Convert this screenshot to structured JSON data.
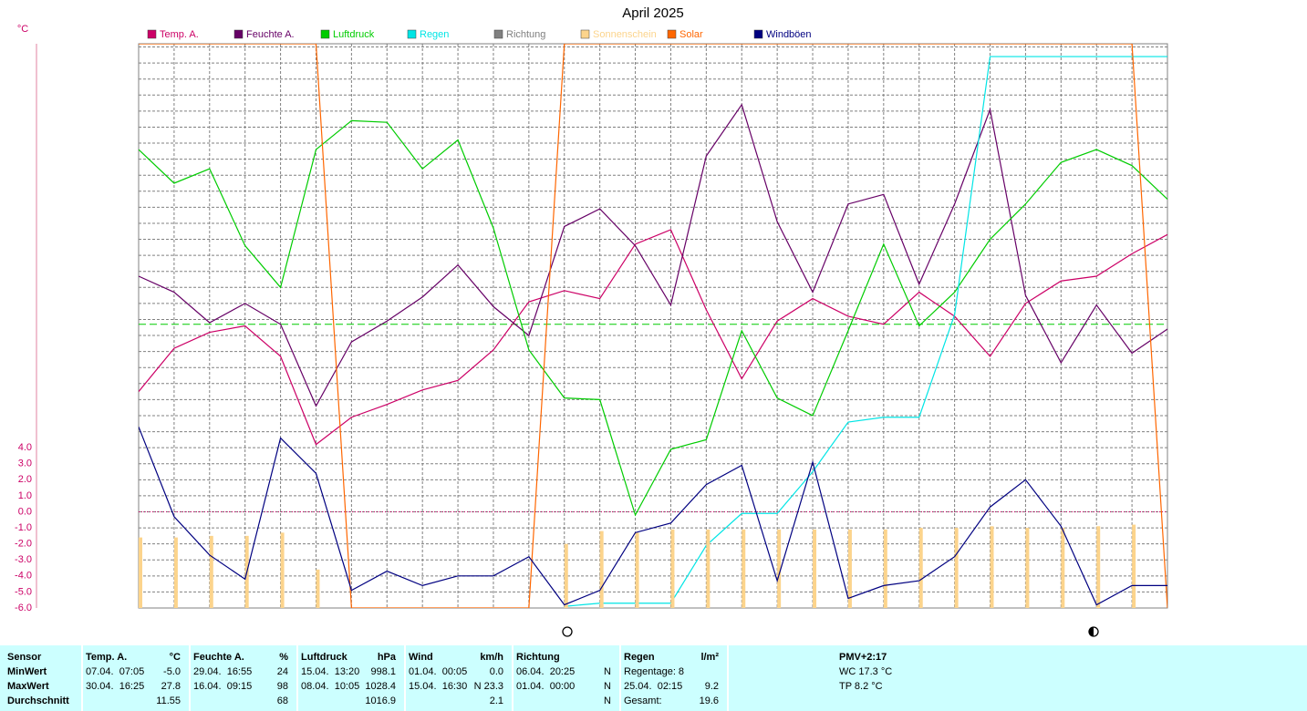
{
  "chart_data": {
    "type": "line",
    "title": "April 2025",
    "unit_label": "°C",
    "categories": [
      null,
      null,
      null,
      null,
      null,
      null,
      null,
      null,
      null,
      null,
      null,
      null,
      null,
      null,
      null,
      null,
      null,
      null,
      null,
      null,
      null,
      null,
      null,
      null,
      null,
      null,
      null,
      null,
      null,
      null
    ],
    "ylim": [
      -6,
      29.2
    ],
    "yticks": [
      {
        "value": 4,
        "label": "4.0"
      },
      {
        "value": 3,
        "label": "3.0"
      },
      {
        "value": 2,
        "label": "2.0"
      },
      {
        "value": 1,
        "label": "1.0"
      },
      {
        "value": 0,
        "label": "0.0"
      },
      {
        "value": -1,
        "label": "-1.0"
      },
      {
        "value": -2,
        "label": "-2.0"
      },
      {
        "value": -3,
        "label": "-3.0"
      },
      {
        "value": -4,
        "label": "-4.0"
      },
      {
        "value": -5,
        "label": "-5.0"
      },
      {
        "value": -6,
        "label": "-6.0"
      }
    ],
    "ygrid": [
      5,
      6,
      7,
      8,
      9,
      10,
      11,
      12,
      13,
      14,
      15,
      16,
      17,
      18,
      19,
      20,
      21,
      22,
      23,
      24,
      25,
      26,
      27,
      28,
      29
    ],
    "grid": true,
    "reference_lines": [
      {
        "value": 11.7,
        "color": "#00cc00",
        "style": "dashed"
      },
      {
        "value": 0,
        "color": "#cc0066",
        "style": "dotted"
      }
    ],
    "series": [
      {
        "name": "Temp. A.",
        "color": "#cc0066",
        "values": [
          7.5,
          10.2,
          11.2,
          11.6,
          9.7,
          4.2,
          5.9,
          6.7,
          7.6,
          8.2,
          10.1,
          13.1,
          13.8,
          13.3,
          16.7,
          17.6,
          12.6,
          8.3,
          11.9,
          13.3,
          12.2,
          11.7,
          13.7,
          12.2,
          9.7,
          13.0,
          14.4,
          14.7,
          16.1,
          17.3
        ]
      },
      {
        "name": "Feuchte A.",
        "color": "#660066",
        "values": [
          14.7,
          13.7,
          11.8,
          13.0,
          11.7,
          6.6,
          10.6,
          11.9,
          13.4,
          15.4,
          12.8,
          11.0,
          17.8,
          18.9,
          16.6,
          12.9,
          22.2,
          25.4,
          18.1,
          13.7,
          19.2,
          19.8,
          14.2,
          19.2,
          25.1,
          13.5,
          9.3,
          12.9,
          9.9,
          11.4
        ]
      },
      {
        "name": "Luftdruck",
        "color": "#00cc00",
        "values": [
          22.6,
          20.5,
          21.4,
          16.6,
          14.0,
          22.6,
          24.4,
          24.3,
          21.4,
          23.2,
          17.7,
          10.1,
          7.1,
          7.0,
          -0.2,
          3.9,
          4.5,
          11.3,
          7.1,
          6.0,
          11.3,
          16.7,
          11.6,
          13.7,
          17.0,
          19.2,
          21.8,
          22.6,
          21.6,
          19.5
        ]
      },
      {
        "name": "Regen",
        "color": "#00e5e5",
        "values": [
          null,
          null,
          null,
          null,
          null,
          null,
          null,
          null,
          null,
          null,
          null,
          null,
          -5.9,
          -5.7,
          -5.7,
          -5.7,
          -2.1,
          -0.1,
          -0.1,
          2.5,
          5.6,
          5.9,
          5.9,
          12.3,
          28.4,
          28.4,
          28.4,
          28.4,
          28.4,
          28.4
        ]
      },
      {
        "name": "Richtung",
        "color": "#808080"
      },
      {
        "name": "Sonnenschein",
        "color": "#fcd48c",
        "type": "bar",
        "values": [
          -1.6,
          -1.6,
          -1.5,
          -1.5,
          -1.3,
          -3.6,
          null,
          null,
          null,
          null,
          null,
          null,
          -2.0,
          -1.2,
          -1.3,
          -1.1,
          -1.1,
          -1.1,
          -1.1,
          -1.1,
          -1.1,
          -1.1,
          -1.0,
          -1.0,
          -0.9,
          -1.0,
          -1.0,
          -0.9,
          -0.8,
          null
        ]
      },
      {
        "name": "Solar",
        "color": "#ff6600",
        "values": [
          29.2,
          29.2,
          29.2,
          29.2,
          29.2,
          29.2,
          -6,
          -6,
          -6,
          -6,
          -6,
          -6,
          29.2,
          29.2,
          29.2,
          29.2,
          29.2,
          29.2,
          29.2,
          29.2,
          29.2,
          29.2,
          29.2,
          29.2,
          29.2,
          29.2,
          29.2,
          29.2,
          29.2,
          -6
        ]
      },
      {
        "name": "Windböen",
        "color": "#000080",
        "values": [
          5.3,
          -0.3,
          -2.7,
          -4.2,
          4.6,
          2.4,
          -4.9,
          -3.7,
          -4.6,
          -4.0,
          -4.0,
          -2.8,
          -5.8,
          -4.9,
          -1.3,
          -0.7,
          1.7,
          2.9,
          -4.3,
          3.1,
          -5.4,
          -4.6,
          -4.3,
          -2.8,
          0.3,
          2.0,
          -0.9,
          -5.8,
          -4.6,
          -4.6
        ]
      }
    ]
  },
  "stats": {
    "row_labels": [
      "Sensor",
      "MinWert",
      "MaxWert",
      "Durchschnitt"
    ],
    "temperature": {
      "name": "Temp. A.",
      "unit": "°C",
      "min_time": "07.04.  07:05",
      "min": "-5.0",
      "max_time": "30.04.  16:25",
      "max": "27.8",
      "average": "11.55"
    },
    "humidity": {
      "name": "Feuchte A.",
      "unit": "%",
      "min_time": "29.04.  16:55",
      "min": "24",
      "max_time": "16.04.  09:15",
      "max": "98",
      "average": "68"
    },
    "pressure": {
      "name": "Luftdruck",
      "unit": "hPa",
      "min_time": "15.04.  13:20",
      "min": "998.1",
      "max_time": "08.04.  10:05",
      "max": "1028.4",
      "average": "1016.9"
    },
    "wind": {
      "name": "Wind",
      "unit": "km/h",
      "min_time": "01.04.  00:05",
      "min": "0.0",
      "max_time": "15.04.  16:30",
      "max": "N 23.3",
      "average": "2.1"
    },
    "direction": {
      "name": "Richtung",
      "min_time": "06.04.  20:25",
      "min": "N",
      "max_time": "01.04.  00:00",
      "max": "N",
      "average": "N"
    },
    "rain": {
      "name": "Regen",
      "unit": "l/m²",
      "rain_days": "Regentage: 8",
      "max_time": "25.04.  02:15",
      "max": "9.2",
      "total_label": "Gesamt:",
      "total": "19.6"
    },
    "comfort": {
      "pmv": "PMV+2:17",
      "wind_chill": "WC 17.3 °C",
      "dew_point": "TP 8.2 °C"
    }
  }
}
